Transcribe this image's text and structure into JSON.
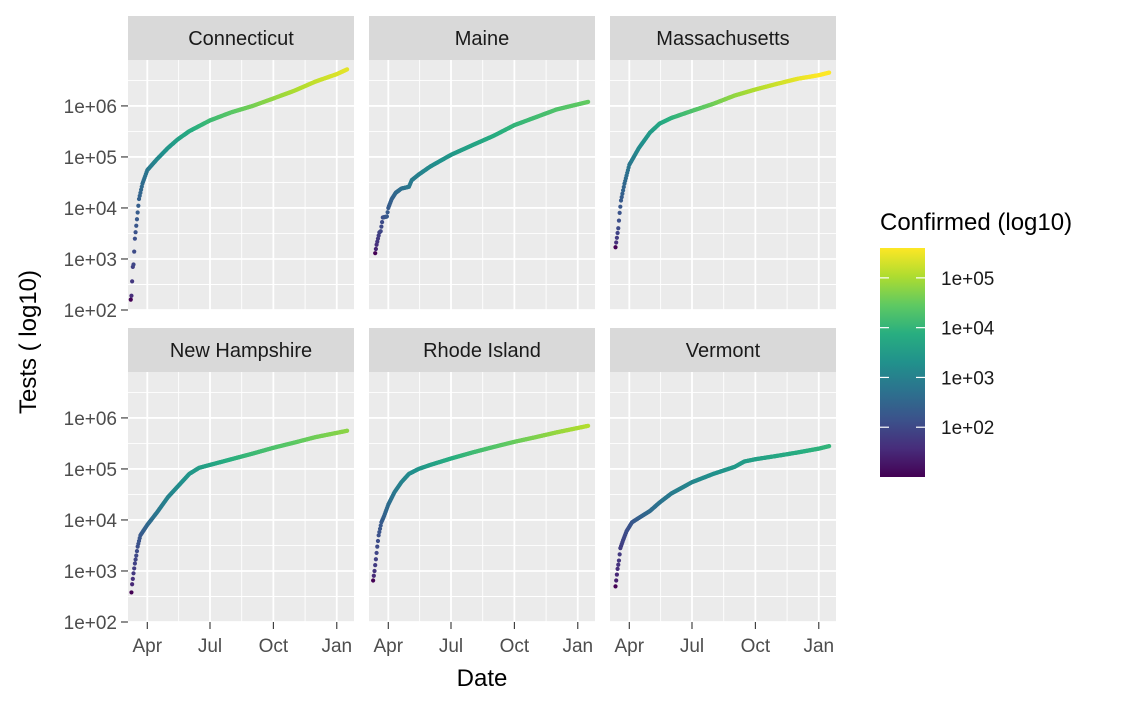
{
  "chart_data": {
    "type": "scatter",
    "facet_by": "state",
    "xlabel": "Date",
    "ylabel": "Tests ( log10)",
    "x_scale": "date",
    "y_scale": "log10",
    "x_ticks": [
      "Apr",
      "Jul",
      "Oct",
      "Jan"
    ],
    "x_tick_dates": [
      "2020-04-01",
      "2020-07-01",
      "2020-10-01",
      "2021-01-01"
    ],
    "xlim": [
      "2020-03-04",
      "2021-01-26"
    ],
    "y_ticks": [
      "1e+02",
      "1e+03",
      "1e+04",
      "1e+05",
      "1e+06"
    ],
    "ylim_log10": [
      2,
      6.9
    ],
    "grid": true,
    "color_scale": {
      "title": "Confirmed (log10)",
      "palette": "viridis",
      "log10_range": [
        1.0,
        5.6
      ],
      "ticks": [
        "1e+02",
        "1e+03",
        "1e+04",
        "1e+05"
      ],
      "legend_position": "right"
    },
    "panels": [
      {
        "state": "Connecticut",
        "max_confirmed": 260000,
        "tests": [
          {
            "date": "2020-03-08",
            "value": 160
          },
          {
            "date": "2020-03-09",
            "value": 190
          },
          {
            "date": "2020-03-11",
            "value": 700
          },
          {
            "date": "2020-03-12",
            "value": 780
          },
          {
            "date": "2020-03-14",
            "value": 2500
          },
          {
            "date": "2020-03-17",
            "value": 6000
          },
          {
            "date": "2020-03-20",
            "value": 15000
          },
          {
            "date": "2020-03-25",
            "value": 30000
          },
          {
            "date": "2020-04-01",
            "value": 55000
          },
          {
            "date": "2020-04-15",
            "value": 90000
          },
          {
            "date": "2020-05-01",
            "value": 150000
          },
          {
            "date": "2020-05-15",
            "value": 220000
          },
          {
            "date": "2020-06-01",
            "value": 320000
          },
          {
            "date": "2020-07-01",
            "value": 520000
          },
          {
            "date": "2020-08-01",
            "value": 750000
          },
          {
            "date": "2020-09-01",
            "value": 1000000
          },
          {
            "date": "2020-10-01",
            "value": 1400000
          },
          {
            "date": "2020-11-01",
            "value": 2000000
          },
          {
            "date": "2020-12-01",
            "value": 3000000
          },
          {
            "date": "2021-01-01",
            "value": 4200000
          },
          {
            "date": "2021-01-16",
            "value": 5200000
          }
        ]
      },
      {
        "state": "Maine",
        "max_confirmed": 30000,
        "tests": [
          {
            "date": "2020-03-13",
            "value": 1300
          },
          {
            "date": "2020-03-15",
            "value": 1900
          },
          {
            "date": "2020-03-17",
            "value": 2500
          },
          {
            "date": "2020-03-19",
            "value": 3300
          },
          {
            "date": "2020-03-21",
            "value": 3500
          },
          {
            "date": "2020-03-24",
            "value": 6500
          },
          {
            "date": "2020-03-30",
            "value": 6800
          },
          {
            "date": "2020-04-01",
            "value": 10000
          },
          {
            "date": "2020-04-06",
            "value": 15000
          },
          {
            "date": "2020-04-12",
            "value": 20000
          },
          {
            "date": "2020-04-20",
            "value": 24000
          },
          {
            "date": "2020-05-01",
            "value": 26000
          },
          {
            "date": "2020-05-05",
            "value": 35000
          },
          {
            "date": "2020-05-15",
            "value": 45000
          },
          {
            "date": "2020-06-01",
            "value": 65000
          },
          {
            "date": "2020-07-01",
            "value": 110000
          },
          {
            "date": "2020-08-01",
            "value": 170000
          },
          {
            "date": "2020-09-01",
            "value": 260000
          },
          {
            "date": "2020-10-01",
            "value": 420000
          },
          {
            "date": "2020-11-01",
            "value": 600000
          },
          {
            "date": "2020-12-01",
            "value": 850000
          },
          {
            "date": "2021-01-16",
            "value": 1200000
          }
        ]
      },
      {
        "state": "Massachusetts",
        "max_confirmed": 480000,
        "tests": [
          {
            "date": "2020-03-12",
            "value": 1700
          },
          {
            "date": "2020-03-14",
            "value": 2600
          },
          {
            "date": "2020-03-16",
            "value": 4000
          },
          {
            "date": "2020-03-18",
            "value": 8000
          },
          {
            "date": "2020-03-20",
            "value": 14000
          },
          {
            "date": "2020-03-25",
            "value": 30000
          },
          {
            "date": "2020-04-01",
            "value": 70000
          },
          {
            "date": "2020-04-15",
            "value": 150000
          },
          {
            "date": "2020-05-01",
            "value": 300000
          },
          {
            "date": "2020-05-15",
            "value": 450000
          },
          {
            "date": "2020-06-01",
            "value": 580000
          },
          {
            "date": "2020-07-01",
            "value": 800000
          },
          {
            "date": "2020-08-01",
            "value": 1100000
          },
          {
            "date": "2020-09-01",
            "value": 1600000
          },
          {
            "date": "2020-10-01",
            "value": 2100000
          },
          {
            "date": "2020-11-01",
            "value": 2700000
          },
          {
            "date": "2020-12-01",
            "value": 3400000
          },
          {
            "date": "2021-01-01",
            "value": 4000000
          },
          {
            "date": "2021-01-16",
            "value": 4500000
          }
        ]
      },
      {
        "state": "New Hampshire",
        "max_confirmed": 60000,
        "tests": [
          {
            "date": "2020-03-09",
            "value": 380
          },
          {
            "date": "2020-03-10",
            "value": 550
          },
          {
            "date": "2020-03-11",
            "value": 700
          },
          {
            "date": "2020-03-12",
            "value": 900
          },
          {
            "date": "2020-03-14",
            "value": 1400
          },
          {
            "date": "2020-03-16",
            "value": 2000
          },
          {
            "date": "2020-03-18",
            "value": 3000
          },
          {
            "date": "2020-03-22",
            "value": 5000
          },
          {
            "date": "2020-04-01",
            "value": 8000
          },
          {
            "date": "2020-04-15",
            "value": 14000
          },
          {
            "date": "2020-05-01",
            "value": 28000
          },
          {
            "date": "2020-05-15",
            "value": 45000
          },
          {
            "date": "2020-06-01",
            "value": 80000
          },
          {
            "date": "2020-06-15",
            "value": 105000
          },
          {
            "date": "2020-07-01",
            "value": 120000
          },
          {
            "date": "2020-08-01",
            "value": 155000
          },
          {
            "date": "2020-09-01",
            "value": 200000
          },
          {
            "date": "2020-10-01",
            "value": 260000
          },
          {
            "date": "2020-11-01",
            "value": 330000
          },
          {
            "date": "2020-12-01",
            "value": 420000
          },
          {
            "date": "2021-01-16",
            "value": 560000
          }
        ]
      },
      {
        "state": "Rhode Island",
        "max_confirmed": 115000,
        "tests": [
          {
            "date": "2020-03-10",
            "value": 650
          },
          {
            "date": "2020-03-12",
            "value": 1000
          },
          {
            "date": "2020-03-14",
            "value": 1700
          },
          {
            "date": "2020-03-16",
            "value": 3000
          },
          {
            "date": "2020-03-18",
            "value": 5000
          },
          {
            "date": "2020-03-22",
            "value": 9000
          },
          {
            "date": "2020-03-26",
            "value": 12000
          },
          {
            "date": "2020-04-01",
            "value": 20000
          },
          {
            "date": "2020-04-10",
            "value": 35000
          },
          {
            "date": "2020-04-20",
            "value": 55000
          },
          {
            "date": "2020-05-01",
            "value": 80000
          },
          {
            "date": "2020-05-15",
            "value": 100000
          },
          {
            "date": "2020-06-01",
            "value": 120000
          },
          {
            "date": "2020-07-01",
            "value": 160000
          },
          {
            "date": "2020-08-01",
            "value": 210000
          },
          {
            "date": "2020-09-01",
            "value": 270000
          },
          {
            "date": "2020-10-01",
            "value": 340000
          },
          {
            "date": "2020-11-01",
            "value": 420000
          },
          {
            "date": "2020-12-01",
            "value": 520000
          },
          {
            "date": "2021-01-16",
            "value": 700000
          }
        ]
      },
      {
        "state": "Vermont",
        "max_confirmed": 10000,
        "tests": [
          {
            "date": "2020-03-12",
            "value": 500
          },
          {
            "date": "2020-03-13",
            "value": 650
          },
          {
            "date": "2020-03-14",
            "value": 850
          },
          {
            "date": "2020-03-15",
            "value": 1100
          },
          {
            "date": "2020-03-17",
            "value": 1600
          },
          {
            "date": "2020-03-19",
            "value": 2800
          },
          {
            "date": "2020-03-23",
            "value": 4000
          },
          {
            "date": "2020-03-28",
            "value": 6000
          },
          {
            "date": "2020-04-05",
            "value": 9000
          },
          {
            "date": "2020-04-15",
            "value": 11000
          },
          {
            "date": "2020-05-01",
            "value": 15000
          },
          {
            "date": "2020-05-15",
            "value": 22000
          },
          {
            "date": "2020-06-01",
            "value": 33000
          },
          {
            "date": "2020-07-01",
            "value": 55000
          },
          {
            "date": "2020-08-01",
            "value": 80000
          },
          {
            "date": "2020-09-01",
            "value": 110000
          },
          {
            "date": "2020-09-15",
            "value": 140000
          },
          {
            "date": "2020-10-01",
            "value": 155000
          },
          {
            "date": "2020-11-01",
            "value": 180000
          },
          {
            "date": "2020-12-01",
            "value": 210000
          },
          {
            "date": "2021-01-01",
            "value": 250000
          },
          {
            "date": "2021-01-16",
            "value": 280000
          }
        ]
      }
    ]
  }
}
